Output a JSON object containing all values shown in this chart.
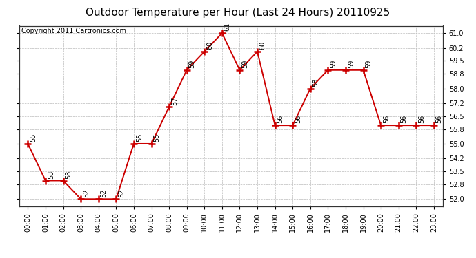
{
  "title": "Outdoor Temperature per Hour (Last 24 Hours) 20110925",
  "copyright": "Copyright 2011 Cartronics.com",
  "hours": [
    "00:00",
    "01:00",
    "02:00",
    "03:00",
    "04:00",
    "05:00",
    "06:00",
    "07:00",
    "08:00",
    "09:00",
    "10:00",
    "11:00",
    "12:00",
    "13:00",
    "14:00",
    "15:00",
    "16:00",
    "17:00",
    "18:00",
    "19:00",
    "20:00",
    "21:00",
    "22:00",
    "23:00"
  ],
  "temps": [
    55,
    53,
    53,
    52,
    52,
    52,
    55,
    55,
    57,
    59,
    60,
    61,
    59,
    60,
    56,
    56,
    58,
    59,
    59,
    59,
    56,
    56,
    56,
    56
  ],
  "line_color": "#cc0000",
  "marker": "+",
  "marker_size": 7,
  "marker_linewidth": 1.8,
  "line_width": 1.4,
  "bg_color": "#ffffff",
  "plot_bg_color": "#ffffff",
  "grid_color": "#bbbbbb",
  "ylim": [
    51.6,
    61.4
  ],
  "yticks": [
    52.0,
    52.8,
    53.5,
    54.2,
    55.0,
    55.8,
    56.5,
    57.2,
    58.0,
    58.8,
    59.5,
    60.2,
    61.0
  ],
  "ytick_labels_right": [
    "52.0",
    "52.8",
    "53.5",
    "54.2",
    "55.0",
    "55.8",
    "56.5",
    "57.2",
    "58.0",
    "58.8",
    "59.5",
    "60.2",
    "61.0"
  ],
  "title_fontsize": 11,
  "label_fontsize": 7,
  "copyright_fontsize": 7,
  "annotation_fontsize": 7
}
